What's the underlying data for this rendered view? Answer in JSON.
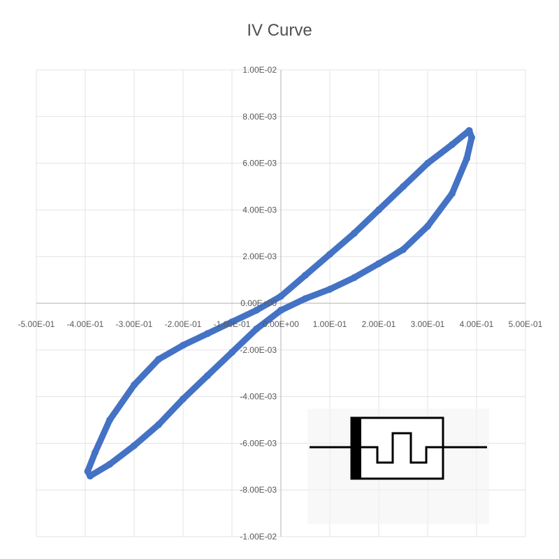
{
  "chart_data": {
    "type": "scatter",
    "title": "IV Curve",
    "xlabel": "",
    "ylabel": "",
    "xlim": [
      -0.5,
      0.5
    ],
    "ylim": [
      -0.01,
      0.01
    ],
    "grid": true,
    "legend": "none",
    "x_ticks": [
      -0.5,
      -0.4,
      -0.3,
      -0.2,
      -0.1,
      0,
      0.1,
      0.2,
      0.3,
      0.4,
      0.5
    ],
    "x_tick_labels": [
      "-5.00E-01",
      "-4.00E-01",
      "-3.00E-01",
      "-2.00E-01",
      "-1.00E-01",
      "0.00E+00",
      "1.00E-01",
      "2.00E-01",
      "3.00E-01",
      "4.00E-01",
      "5.00E-01"
    ],
    "y_ticks": [
      0.01,
      0.008,
      0.006,
      0.004,
      0.002,
      0,
      -0.002,
      -0.004,
      -0.006,
      -0.008,
      -0.01
    ],
    "y_tick_labels": [
      "1.00E-02",
      "8.00E-03",
      "6.00E-03",
      "4.00E-03",
      "2.00E-03",
      "0.00E+00",
      "-2.00E-03",
      "-4.00E-03",
      "-6.00E-03",
      "-8.00E-03",
      "-1.00E-02"
    ],
    "series": [
      {
        "color": "#4472c4",
        "x": [
          0.0,
          0.05,
          0.1,
          0.15,
          0.2,
          0.25,
          0.3,
          0.35,
          0.38,
          0.39,
          0.385,
          0.35,
          0.3,
          0.25,
          0.2,
          0.15,
          0.1,
          0.05,
          0.0,
          -0.05,
          -0.1,
          -0.15,
          -0.2,
          -0.25,
          -0.3,
          -0.35,
          -0.38,
          -0.395,
          -0.39,
          -0.35,
          -0.3,
          -0.25,
          -0.2,
          -0.15,
          -0.1,
          -0.05,
          0.0
        ],
        "y": [
          -0.0003,
          0.0002,
          0.0006,
          0.0011,
          0.0017,
          0.0023,
          0.0033,
          0.0047,
          0.0062,
          0.0071,
          0.0074,
          0.0068,
          0.006,
          0.005,
          0.004,
          0.003,
          0.0021,
          0.0012,
          0.0003,
          -0.0003,
          -0.0008,
          -0.0013,
          -0.0018,
          -0.0024,
          -0.0035,
          -0.005,
          -0.0064,
          -0.0072,
          -0.0074,
          -0.0069,
          -0.0061,
          -0.0052,
          -0.0041,
          -0.0031,
          -0.0021,
          -0.0011,
          -0.0003
        ]
      }
    ]
  },
  "symbol": {
    "name": "memristor-symbol-icon"
  }
}
